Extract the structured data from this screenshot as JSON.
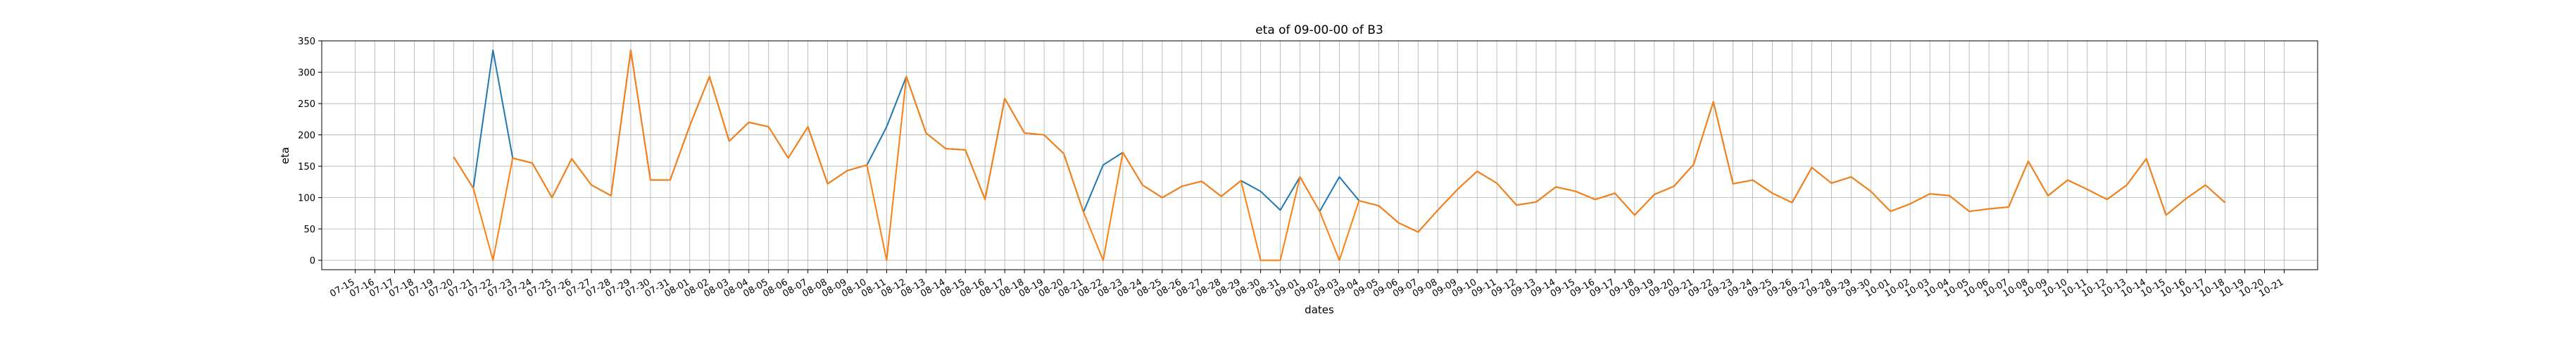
{
  "chart_data": {
    "type": "line",
    "title": "eta of 09-00-00 of B3",
    "xlabel": "dates",
    "ylabel": "eta",
    "ylim": [
      -15,
      350
    ],
    "yticks": [
      0,
      50,
      100,
      150,
      200,
      250,
      300,
      350
    ],
    "grid": true,
    "categories": [
      "07-15",
      "07-16",
      "07-17",
      "07-18",
      "07-19",
      "07-20",
      "07-21",
      "07-22",
      "07-23",
      "07-24",
      "07-25",
      "07-26",
      "07-27",
      "07-28",
      "07-29",
      "07-30",
      "07-31",
      "08-01",
      "08-02",
      "08-03",
      "08-04",
      "08-05",
      "08-06",
      "08-07",
      "08-08",
      "08-09",
      "08-10",
      "08-11",
      "08-12",
      "08-13",
      "08-14",
      "08-15",
      "08-16",
      "08-17",
      "08-18",
      "08-19",
      "08-20",
      "08-21",
      "08-22",
      "08-23",
      "08-24",
      "08-25",
      "08-26",
      "08-27",
      "08-28",
      "08-29",
      "08-30",
      "08-31",
      "09-01",
      "09-02",
      "09-03",
      "09-04",
      "09-05",
      "09-06",
      "09-07",
      "09-08",
      "09-09",
      "09-10",
      "09-11",
      "09-12",
      "09-13",
      "09-14",
      "09-15",
      "09-16",
      "09-17",
      "09-18",
      "09-19",
      "09-20",
      "09-21",
      "09-22",
      "09-23",
      "09-24",
      "09-25",
      "09-26",
      "09-27",
      "09-28",
      "09-29",
      "09-30",
      "10-01",
      "10-02",
      "10-03",
      "10-04",
      "10-05",
      "10-06",
      "10-07",
      "10-08",
      "10-09",
      "10-10",
      "10-11",
      "10-12",
      "10-13",
      "10-14",
      "10-15",
      "10-16",
      "10-17",
      "10-18",
      "10-19",
      "10-20",
      "10-21"
    ],
    "series": [
      {
        "color": "#1f77b4",
        "values": [
          null,
          null,
          null,
          null,
          null,
          165,
          115,
          335,
          163,
          155,
          100,
          162,
          120,
          103,
          335,
          128,
          128,
          215,
          293,
          190,
          220,
          213,
          163,
          213,
          122,
          143,
          152,
          213,
          293,
          203,
          178,
          176,
          97,
          258,
          203,
          200,
          170,
          77,
          152,
          172,
          120,
          100,
          118,
          126,
          102,
          127,
          110,
          80,
          133,
          78,
          133,
          95,
          87,
          60,
          45,
          80,
          113,
          142,
          123,
          88,
          93,
          117,
          110,
          97,
          107,
          72,
          105,
          118,
          153,
          253,
          122,
          128,
          107,
          92,
          148,
          123,
          133,
          110,
          78,
          90,
          106,
          103,
          78,
          82,
          85,
          158,
          103,
          128,
          113,
          97,
          120,
          162,
          72,
          98,
          120,
          92,
          null,
          null,
          null
        ]
      },
      {
        "color": "#ff7f0e",
        "values": [
          null,
          null,
          null,
          null,
          null,
          165,
          115,
          0,
          163,
          155,
          100,
          162,
          120,
          103,
          335,
          128,
          128,
          215,
          293,
          190,
          220,
          213,
          163,
          213,
          122,
          143,
          152,
          0,
          293,
          203,
          178,
          176,
          97,
          258,
          203,
          200,
          170,
          77,
          0,
          172,
          120,
          100,
          118,
          126,
          102,
          127,
          0,
          0,
          133,
          78,
          0,
          95,
          87,
          60,
          45,
          80,
          113,
          142,
          123,
          88,
          93,
          117,
          110,
          97,
          107,
          72,
          105,
          118,
          153,
          253,
          122,
          128,
          107,
          92,
          148,
          123,
          133,
          110,
          78,
          90,
          106,
          103,
          78,
          82,
          85,
          158,
          103,
          128,
          113,
          97,
          120,
          162,
          72,
          98,
          120,
          92,
          null,
          null,
          null
        ]
      }
    ]
  }
}
